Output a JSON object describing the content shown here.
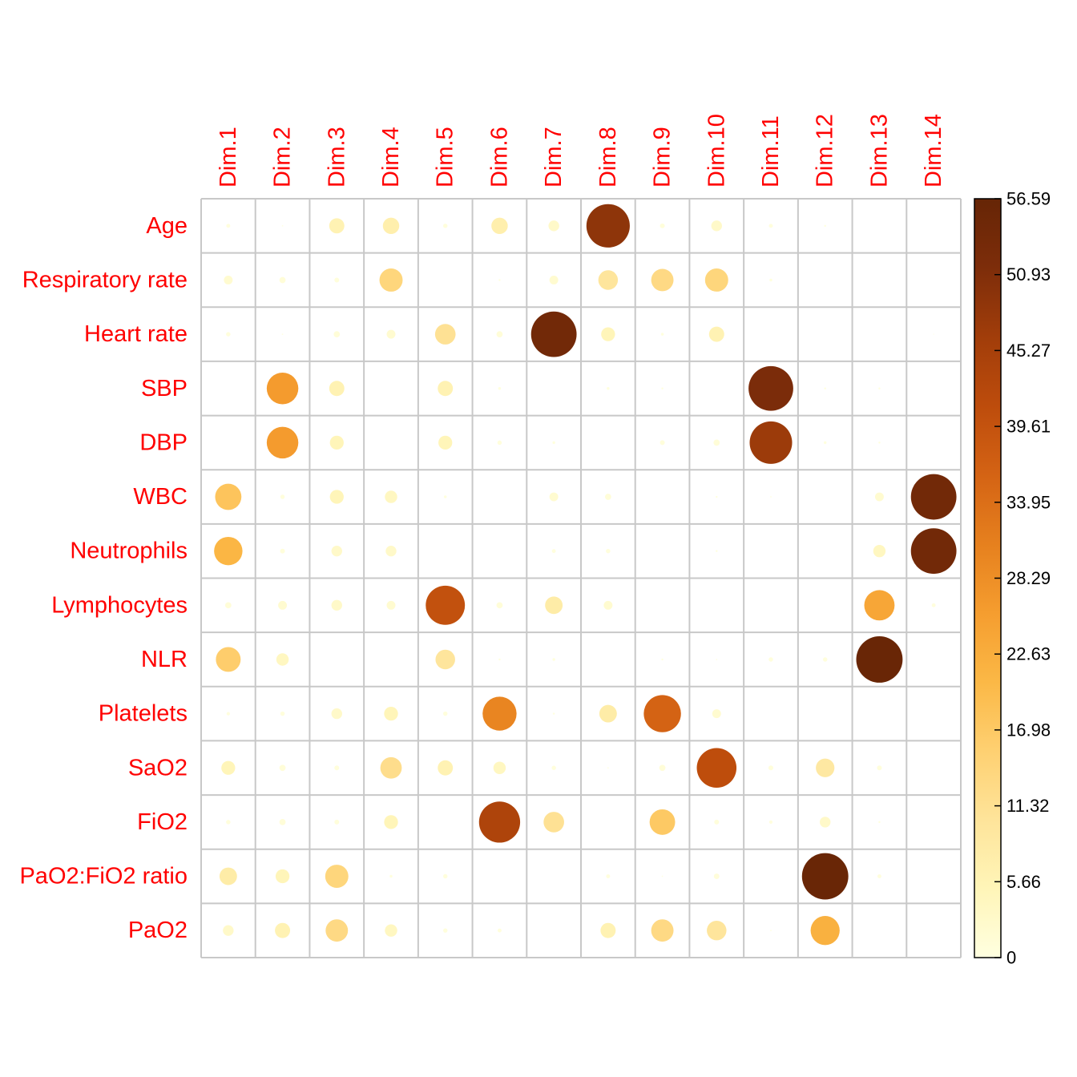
{
  "chart_data": {
    "type": "heatmap",
    "rows": [
      "Age",
      "Respiratory rate",
      "Heart rate",
      "SBP",
      "DBP",
      "WBC",
      "Neutrophils",
      "Lymphocytes",
      "NLR",
      "Platelets",
      "SaO2",
      "FiO2",
      "PaO2:FiO2 ratio",
      "PaO2"
    ],
    "columns": [
      "Dim.1",
      "Dim.2",
      "Dim.3",
      "Dim.4",
      "Dim.5",
      "Dim.6",
      "Dim.7",
      "Dim.8",
      "Dim.9",
      "Dim.10",
      "Dim.11",
      "Dim.12",
      "Dim.13",
      "Dim.14"
    ],
    "values": [
      [
        0.4,
        0.05,
        6,
        7,
        0.5,
        7,
        3,
        49,
        0.6,
        3,
        0.4,
        0.1,
        0,
        0
      ],
      [
        2,
        1,
        0.6,
        14,
        0,
        0.1,
        2,
        10,
        13,
        14,
        0.2,
        0,
        0,
        0
      ],
      [
        0.5,
        0.05,
        1,
        2,
        11,
        1,
        54,
        5,
        0.2,
        6,
        0,
        0,
        0,
        0.02
      ],
      [
        0,
        26,
        6,
        0,
        6,
        0.2,
        0,
        0.2,
        0.1,
        0,
        52,
        0.1,
        0.1,
        0
      ],
      [
        0,
        26,
        5,
        0,
        5,
        0.5,
        0.2,
        0,
        0.6,
        1,
        47,
        0.2,
        0.1,
        0
      ],
      [
        18,
        0.5,
        5,
        4,
        0.2,
        0,
        2,
        1,
        0,
        0.1,
        0.05,
        0,
        2,
        54
      ],
      [
        21,
        0.6,
        3,
        3,
        0,
        0,
        0.4,
        0.5,
        0,
        0.1,
        0,
        0,
        4,
        54
      ],
      [
        1,
        2,
        3,
        2,
        40,
        1,
        8,
        2,
        0,
        0,
        0,
        0,
        24,
        0.4
      ],
      [
        16,
        4,
        0,
        0,
        10,
        0.1,
        0.2,
        0,
        0.1,
        0.05,
        0.5,
        0.5,
        56,
        0
      ],
      [
        0.3,
        0.5,
        3,
        5,
        0.5,
        30,
        0.1,
        8,
        36,
        2,
        0,
        0,
        0,
        0
      ],
      [
        5,
        1,
        0.6,
        12,
        6,
        4,
        0.5,
        0.05,
        1,
        41,
        0.6,
        9,
        0.6,
        0
      ],
      [
        0.5,
        1,
        0.6,
        5,
        0,
        44,
        11,
        0,
        17,
        0.6,
        0.3,
        3,
        0.1,
        0
      ],
      [
        8,
        5,
        14,
        0.2,
        0.5,
        0,
        0,
        0.4,
        0.05,
        0.8,
        0,
        56,
        0.4,
        0
      ],
      [
        3,
        6,
        13,
        4,
        0.5,
        0.4,
        0,
        6,
        13,
        10,
        0.05,
        22,
        0,
        0
      ]
    ],
    "scale_min": 0,
    "scale_max": 56.59,
    "colorbar_ticks": [
      "0",
      "5.66",
      "11.32",
      "16.98",
      "22.63",
      "28.29",
      "33.95",
      "39.61",
      "45.27",
      "50.93",
      "56.59"
    ],
    "color_stops": [
      "#ffffe0",
      "#fff5b8",
      "#fee49a",
      "#fed071",
      "#fbb846",
      "#f59d2f",
      "#e6801e",
      "#d46314",
      "#bd4c0c",
      "#a13d0a",
      "#7d2d0a",
      "#662506"
    ],
    "label_color": "#ff0000",
    "grid_color": "#c8c8c8",
    "legend_position": "right"
  }
}
